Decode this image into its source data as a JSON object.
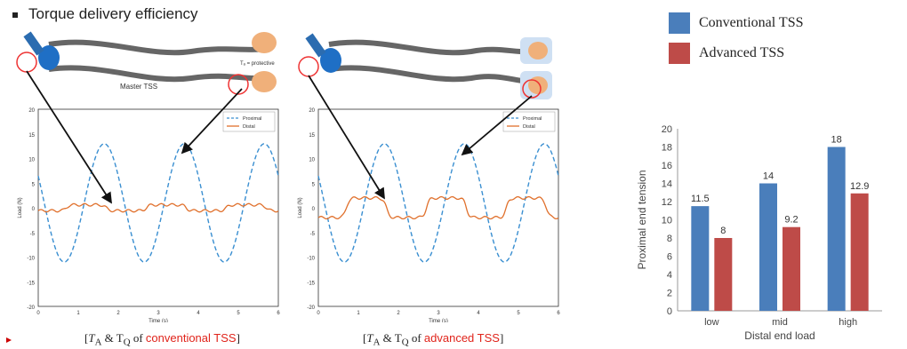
{
  "slide": {
    "title": "Torque delivery efficiency",
    "caption_left_prefix": "[T",
    "caption_left_text": "conventional TSS",
    "caption_right_text": "advanced TSS",
    "caption_middle": " of ",
    "caption_end": "]",
    "caption_amp": " & T",
    "sub_a": "A",
    "sub_q": "Q",
    "diagram_label": "Master TSS",
    "diagram_label_2": "Tₐ = protective"
  },
  "waveform_plots": [
    {
      "legend": [
        "Proximal",
        "Distal"
      ],
      "xlabel": "Time (s)",
      "ylabel": "Load (N)",
      "xticks": [
        "0",
        "1",
        "2",
        "3",
        "4",
        "5",
        "6"
      ],
      "yticks": [
        "20",
        "15",
        "10",
        "5",
        "0",
        "-5",
        "-10",
        "-15",
        "-20"
      ],
      "distal_amplitude": 0.6
    },
    {
      "legend": [
        "Proximal",
        "Distal"
      ],
      "xlabel": "Time (s)",
      "ylabel": "Load (N)",
      "xticks": [
        "0",
        "1",
        "2",
        "3",
        "4",
        "5",
        "6"
      ],
      "yticks": [
        "20",
        "15",
        "10",
        "5",
        "0",
        "-5",
        "-10",
        "-15",
        "-20"
      ],
      "distal_amplitude": 2.0
    }
  ],
  "chart_data": {
    "type": "bar",
    "categories": [
      "low",
      "mid",
      "high"
    ],
    "series": [
      {
        "name": "Conventional TSS",
        "values": [
          11.5,
          14,
          18
        ],
        "labels": [
          "11.5",
          "14",
          "18"
        ],
        "color": "#4a7ebb"
      },
      {
        "name": "Advanced TSS",
        "values": [
          8,
          9.2,
          12.9
        ],
        "labels": [
          "8",
          "9.2",
          "12.9"
        ],
        "color": "#be4b48"
      }
    ],
    "xlabel": "Distal end load",
    "ylabel": "Proximal end tension",
    "ylim": [
      0,
      20
    ],
    "yticks": [
      "0",
      "2",
      "4",
      "6",
      "8",
      "10",
      "12",
      "14",
      "16",
      "18",
      "20"
    ],
    "legend": [
      "Conventional TSS",
      "Advanced TSS"
    ]
  }
}
